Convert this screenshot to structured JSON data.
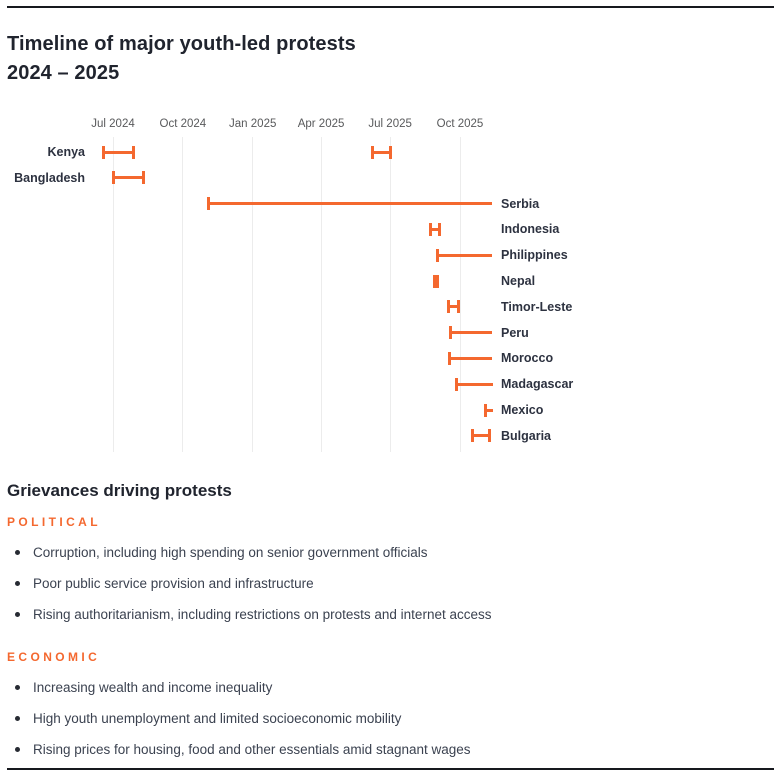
{
  "page": {
    "title_line1": "Timeline of major youth-led protests",
    "title_line2": "2024 – 2025"
  },
  "colors": {
    "accent_orange": "#f4682f",
    "heading_dark": "#20242e",
    "body_text": "#3b4250",
    "country_label": "#2d3240",
    "axis_label_grey": "#58595b",
    "gridline_grey": "#ececec",
    "rule_dark": "#17191e"
  },
  "chart_data": {
    "type": "timeline-gantt",
    "title": "Timeline of major youth-led protests 2024 – 2025",
    "axis": {
      "grid": true,
      "ticks": [
        {
          "label": "Jul 2024",
          "date": "2024-07-01"
        },
        {
          "label": "Oct 2024",
          "date": "2024-10-01"
        },
        {
          "label": "Jan 2025",
          "date": "2025-01-01"
        },
        {
          "label": "Apr 2025",
          "date": "2025-04-01"
        },
        {
          "label": "Jul 2025",
          "date": "2025-07-01"
        },
        {
          "label": "Oct 2025",
          "date": "2025-10-01"
        }
      ]
    },
    "rows": [
      {
        "country": "Kenya",
        "label_side": "left",
        "spans": [
          {
            "start": "2024-06-18",
            "end": "2024-07-28",
            "ongoing": false
          },
          {
            "start": "2025-06-08",
            "end": "2025-07-02",
            "ongoing": false
          }
        ]
      },
      {
        "country": "Bangladesh",
        "label_side": "left",
        "spans": [
          {
            "start": "2024-07-01",
            "end": "2024-08-10",
            "ongoing": false
          }
        ]
      },
      {
        "country": "Serbia",
        "label_side": "right",
        "spans": [
          {
            "start": "2024-11-04",
            "end": "2025-11-10",
            "ongoing": true
          }
        ]
      },
      {
        "country": "Indonesia",
        "label_side": "right",
        "spans": [
          {
            "start": "2025-08-23",
            "end": "2025-09-04",
            "ongoing": false
          }
        ]
      },
      {
        "country": "Philippines",
        "label_side": "right",
        "spans": [
          {
            "start": "2025-09-02",
            "end": "2025-11-10",
            "ongoing": true
          }
        ]
      },
      {
        "country": "Nepal",
        "label_side": "right",
        "spans": [
          {
            "start": "2025-08-28",
            "end": "2025-09-02",
            "ongoing": false
          }
        ]
      },
      {
        "country": "Timor-Leste",
        "label_side": "right",
        "spans": [
          {
            "start": "2025-09-16",
            "end": "2025-09-29",
            "ongoing": false
          }
        ]
      },
      {
        "country": "Peru",
        "label_side": "right",
        "spans": [
          {
            "start": "2025-09-18",
            "end": "2025-11-10",
            "ongoing": true
          }
        ]
      },
      {
        "country": "Morocco",
        "label_side": "right",
        "spans": [
          {
            "start": "2025-09-17",
            "end": "2025-11-10",
            "ongoing": true
          }
        ]
      },
      {
        "country": "Madagascar",
        "label_side": "right",
        "spans": [
          {
            "start": "2025-09-26",
            "end": "2025-11-12",
            "ongoing": true
          }
        ]
      },
      {
        "country": "Mexico",
        "label_side": "right",
        "spans": [
          {
            "start": "2025-11-04",
            "end": "2025-11-12",
            "ongoing": true
          }
        ]
      },
      {
        "country": "Bulgaria",
        "label_side": "right",
        "spans": [
          {
            "start": "2025-10-17",
            "end": "2025-11-09",
            "ongoing": false
          }
        ]
      }
    ]
  },
  "grievances": {
    "heading": "Grievances driving protests",
    "groups": [
      {
        "title": "POLITICAL",
        "items": [
          "Corruption, including high spending on senior government officials",
          "Poor public service provision and infrastructure",
          "Rising authoritarianism, including restrictions on protests and internet access"
        ]
      },
      {
        "title": "ECONOMIC",
        "items": [
          "Increasing wealth and income inequality",
          "High youth unemployment and limited socioeconomic mobility",
          "Rising prices for housing, food and other essentials amid stagnant wages"
        ]
      }
    ]
  }
}
